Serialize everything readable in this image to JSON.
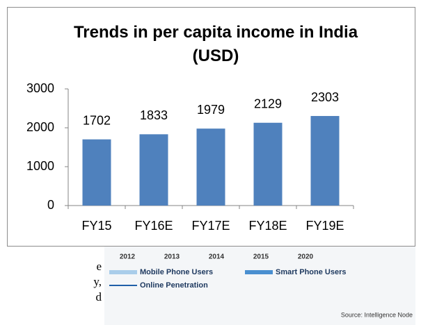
{
  "chart_data": {
    "type": "bar",
    "title": "Trends in per capita income in India (USD)",
    "categories": [
      "FY15",
      "FY16E",
      "FY17E",
      "FY18E",
      "FY19E"
    ],
    "values": [
      1702,
      1833,
      1979,
      2129,
      2303
    ],
    "color": "#4f81bd",
    "ylim": [
      0,
      3000
    ],
    "yticks": [
      0,
      1000,
      2000,
      3000
    ],
    "grid": false
  },
  "background_figure": {
    "years": [
      "2012",
      "2013",
      "2014",
      "2015",
      "2020"
    ],
    "legend": [
      {
        "name": "Mobile Phone Users",
        "color": "#a9cdea"
      },
      {
        "name": "Smart Phone Users",
        "color": "#4a8fd0"
      },
      {
        "name": "Online Penetration",
        "color": "#1f5fa8"
      }
    ],
    "source": "Source: Intelligence Node"
  },
  "margin_text": [
    "e",
    "y,",
    "d"
  ]
}
